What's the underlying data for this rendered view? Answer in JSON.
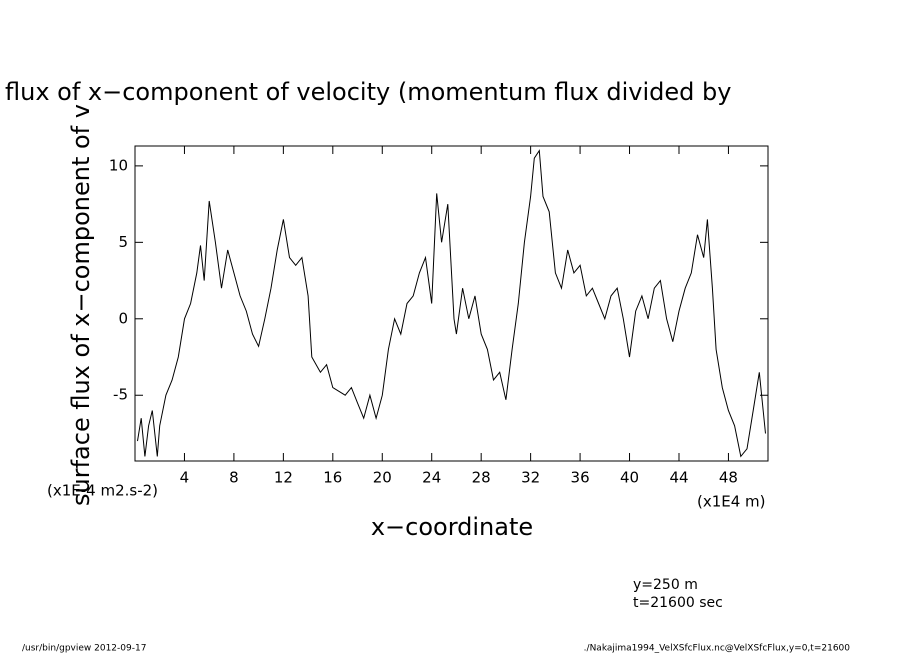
{
  "chart_data": {
    "type": "line",
    "title": "flux of x−component of velocity (momentum flux divided by",
    "ylabel": "surface flux of x−component of v",
    "xlabel": "x−coordinate",
    "yunits": "(x1E-4 m2.s-2)",
    "xunits": "(x1E4 m)",
    "annotations": [
      "y=250 m",
      "t=21600 sec"
    ],
    "footer_left": "/usr/bin/gpview  2012-09-17",
    "footer_right": "./Nakajima1994_VelXSfcFlux.nc@VelXSfcFlux,y=0,t=21600",
    "color": "#000000",
    "xlim": [
      0,
      51.2
    ],
    "ylim": [
      -9.3,
      11.3
    ],
    "xticks": [
      4,
      8,
      12,
      16,
      20,
      24,
      28,
      32,
      36,
      40,
      44,
      48
    ],
    "yticks": [
      -5,
      0,
      5,
      10
    ],
    "x": [
      0.2,
      0.5,
      0.8,
      1.1,
      1.4,
      1.8,
      2,
      2.5,
      3,
      3.5,
      4,
      4.5,
      5,
      5.3,
      5.6,
      6,
      6.5,
      7,
      7.5,
      8,
      8.5,
      9,
      9.5,
      10,
      10.5,
      11,
      11.5,
      12,
      12.5,
      13,
      13.5,
      14,
      14.3,
      15,
      15.5,
      16,
      17,
      17.5,
      18,
      18.5,
      19,
      19.5,
      20,
      20.5,
      21,
      21.5,
      22,
      22.5,
      23,
      23.5,
      24,
      24.4,
      24.8,
      25.3,
      25.8,
      26,
      26.5,
      27,
      27.5,
      28,
      28.5,
      29,
      29.5,
      30,
      30.5,
      31,
      31.5,
      32,
      32.3,
      32.7,
      33,
      33.5,
      34,
      34.5,
      35,
      35.5,
      36,
      36.5,
      37,
      37.5,
      38,
      38.5,
      39,
      39.5,
      40,
      40.5,
      41,
      41.5,
      42,
      42.5,
      43,
      43.5,
      44,
      44.5,
      45,
      45.5,
      46,
      46.3,
      46.7,
      47,
      47.5,
      48,
      48.5,
      49,
      49.5,
      50,
      50.5,
      51
    ],
    "values": [
      -8,
      -6.5,
      -9,
      -7,
      -6,
      -9,
      -7,
      -5,
      -4,
      -2.5,
      0,
      1,
      3,
      4.8,
      2.5,
      7.7,
      5,
      2,
      4.5,
      3,
      1.5,
      0.5,
      -1,
      -1.8,
      0,
      2,
      4.5,
      6.5,
      4,
      3.5,
      4,
      1.5,
      -2.5,
      -3.5,
      -3,
      -4.5,
      -5,
      -4.5,
      -5.5,
      -6.5,
      -5,
      -6.5,
      -5,
      -2,
      0,
      -1,
      1,
      1.5,
      3,
      4,
      1,
      8.2,
      5,
      7.5,
      0,
      -1,
      2,
      0,
      1.5,
      -1,
      -2,
      -4,
      -3.5,
      -5.3,
      -2,
      1,
      5,
      8,
      10.5,
      11,
      8,
      7,
      3,
      2,
      4.5,
      3,
      3.5,
      1.5,
      2,
      1,
      0,
      1.5,
      2,
      0,
      -2.5,
      0.5,
      1.5,
      0,
      2,
      2.5,
      0,
      -1.5,
      0.5,
      2,
      3,
      5.5,
      4,
      6.5,
      2,
      -2,
      -4.5,
      -6,
      -7,
      -9,
      -8.5,
      -6,
      -3.5,
      -7.5
    ]
  }
}
